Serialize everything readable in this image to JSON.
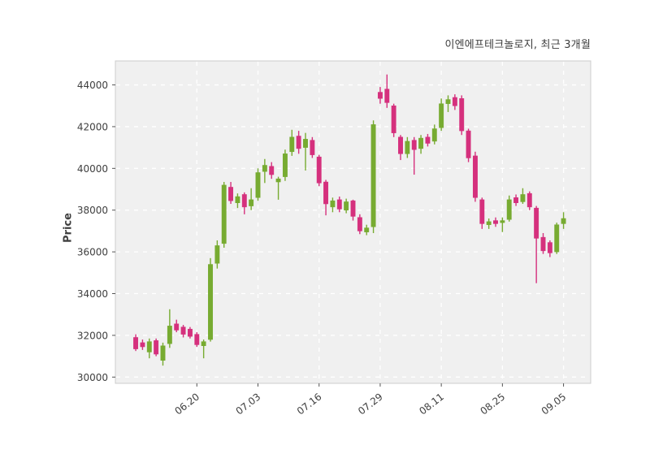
{
  "header": {
    "title": "이엔에프테크놀로지, 최근 3개월"
  },
  "chart_data": {
    "type": "candlestick",
    "title": "이엔에프테크놀로지, 최근 3개월",
    "ylabel": "Price",
    "xlabel": "",
    "grid": "dashed",
    "legend": "none",
    "ylim": [
      29700,
      45150
    ],
    "y_ticks": [
      30000,
      32000,
      34000,
      36000,
      38000,
      40000,
      42000,
      44000
    ],
    "x_ticks": [
      {
        "label": "06.20",
        "index": 9
      },
      {
        "label": "07.03",
        "index": 18
      },
      {
        "label": "07.16",
        "index": 27
      },
      {
        "label": "07.29",
        "index": 36
      },
      {
        "label": "08.11",
        "index": 45
      },
      {
        "label": "08.25",
        "index": 54
      },
      {
        "label": "09.05",
        "index": 63
      }
    ],
    "colors": {
      "up": "#77ab31",
      "down": "#d5307d",
      "panel": "#f0f0f0",
      "grid": "#ffffff",
      "axis_text": "#3f3f3f",
      "panel_border": "#cccccc"
    },
    "ohlc_order": [
      "date",
      "open",
      "high",
      "low",
      "close"
    ],
    "candles": [
      [
        "06.09",
        31900,
        32050,
        31250,
        31350
      ],
      [
        "06.10",
        31650,
        31800,
        31300,
        31450
      ],
      [
        "06.11",
        31200,
        31850,
        30900,
        31700
      ],
      [
        "06.12",
        31750,
        31850,
        31000,
        31100
      ],
      [
        "06.13",
        30800,
        31650,
        30550,
        31500
      ],
      [
        "06.16",
        31600,
        33250,
        31400,
        32450
      ],
      [
        "06.17",
        32550,
        32750,
        32150,
        32250
      ],
      [
        "06.18",
        32400,
        32500,
        31900,
        32050
      ],
      [
        "06.19",
        32300,
        32400,
        31850,
        31950
      ],
      [
        "06.20",
        32050,
        32150,
        31450,
        31550
      ],
      [
        "06.23",
        31500,
        31800,
        30900,
        31700
      ],
      [
        "06.24",
        31800,
        35700,
        31700,
        35400
      ],
      [
        "06.25",
        35450,
        36550,
        35200,
        36300
      ],
      [
        "06.26",
        36400,
        39350,
        36200,
        39200
      ],
      [
        "06.27",
        39100,
        39350,
        38300,
        38450
      ],
      [
        "06.30",
        38350,
        38800,
        38100,
        38650
      ],
      [
        "07.01",
        38750,
        38850,
        37800,
        38150
      ],
      [
        "07.02",
        38200,
        39050,
        38000,
        38500
      ],
      [
        "07.03",
        38600,
        40000,
        38450,
        39800
      ],
      [
        "07.04",
        39850,
        40450,
        39300,
        40150
      ],
      [
        "07.07",
        40100,
        40300,
        39500,
        39700
      ],
      [
        "07.08",
        39350,
        39600,
        38500,
        39500
      ],
      [
        "07.09",
        39600,
        40900,
        39400,
        40700
      ],
      [
        "07.10",
        40800,
        41850,
        40600,
        41500
      ],
      [
        "07.11",
        41550,
        41800,
        40700,
        40950
      ],
      [
        "07.14",
        41000,
        41700,
        39900,
        41400
      ],
      [
        "07.15",
        41350,
        41500,
        40500,
        40650
      ],
      [
        "07.16",
        40550,
        40650,
        39150,
        39300
      ],
      [
        "07.17",
        39350,
        39450,
        37750,
        38300
      ],
      [
        "07.18",
        38150,
        38600,
        37900,
        38450
      ],
      [
        "07.21",
        38500,
        38650,
        37900,
        38050
      ],
      [
        "07.22",
        38000,
        38550,
        37850,
        38400
      ],
      [
        "07.23",
        38450,
        38500,
        37500,
        37700
      ],
      [
        "07.24",
        37650,
        37800,
        36850,
        37000
      ],
      [
        "07.25",
        36950,
        37300,
        36800,
        37150
      ],
      [
        "07.28",
        37200,
        42300,
        36900,
        42100
      ],
      [
        "07.29",
        43650,
        43900,
        43100,
        43350
      ],
      [
        "07.30",
        43800,
        44500,
        42900,
        43150
      ],
      [
        "07.31",
        43000,
        43100,
        41500,
        41700
      ],
      [
        "08.01",
        41500,
        41600,
        40400,
        40700
      ],
      [
        "08.04",
        40700,
        41500,
        40500,
        41300
      ],
      [
        "08.05",
        41350,
        41500,
        39700,
        40900
      ],
      [
        "08.06",
        40950,
        41600,
        40700,
        41450
      ],
      [
        "08.07",
        41500,
        41650,
        41050,
        41200
      ],
      [
        "08.08",
        41300,
        42100,
        41150,
        41900
      ],
      [
        "08.11",
        41950,
        43350,
        41800,
        43100
      ],
      [
        "08.12",
        43100,
        43500,
        42700,
        43300
      ],
      [
        "08.13",
        43400,
        43550,
        42800,
        43000
      ],
      [
        "08.14",
        43350,
        43500,
        41600,
        41800
      ],
      [
        "08.18",
        41800,
        41900,
        40300,
        40500
      ],
      [
        "08.19",
        40600,
        40800,
        38400,
        38600
      ],
      [
        "08.20",
        38500,
        38600,
        37100,
        37350
      ],
      [
        "08.21",
        37300,
        37600,
        37100,
        37450
      ],
      [
        "08.22",
        37500,
        37650,
        37200,
        37350
      ],
      [
        "08.25",
        37400,
        37650,
        36950,
        37500
      ],
      [
        "08.26",
        37550,
        38700,
        37450,
        38500
      ],
      [
        "08.27",
        38600,
        38750,
        38200,
        38350
      ],
      [
        "08.28",
        38400,
        39050,
        38300,
        38750
      ],
      [
        "08.29",
        38800,
        38900,
        38000,
        38150
      ],
      [
        "09.01",
        38100,
        38200,
        34500,
        36650
      ],
      [
        "09.02",
        36700,
        36900,
        35900,
        36050
      ],
      [
        "09.03",
        36450,
        36550,
        35750,
        35950
      ],
      [
        "09.04",
        36000,
        37400,
        35900,
        37300
      ],
      [
        "09.05",
        37350,
        37900,
        37100,
        37600
      ]
    ]
  }
}
